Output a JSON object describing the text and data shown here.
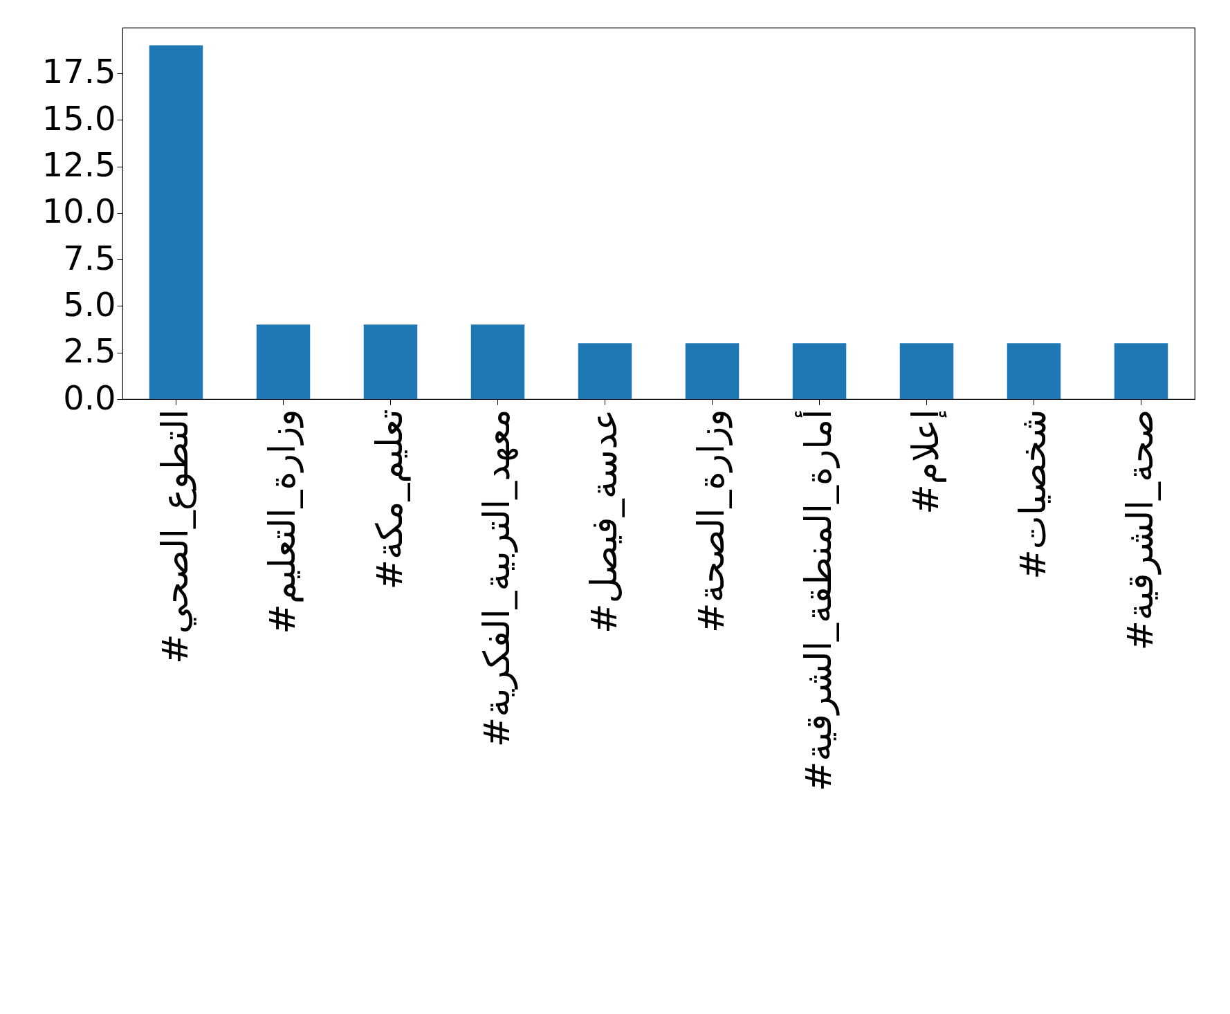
{
  "chart_data": {
    "type": "bar",
    "categories": [
      "#التطوع_الصحي",
      "#وزارة_التعليم",
      "#تعليم_مكة",
      "#معهد_التربية_الفكرية",
      "#عدسة_فيصل",
      "#وزارة_الصحة",
      "#أمارة_المنطقة_الشرقية",
      "#إعلام",
      "#شخصيات",
      "#صحة_الشرقية"
    ],
    "values": [
      19,
      4,
      4,
      4,
      3,
      3,
      3,
      3,
      3,
      3
    ],
    "color": "#1f77b4",
    "ylim": [
      0,
      19.95
    ],
    "yticks": [
      {
        "value": 0,
        "label": "0.0"
      },
      {
        "value": 2.5,
        "label": "2.5"
      },
      {
        "value": 5,
        "label": "5.0"
      },
      {
        "value": 7.5,
        "label": "7.5"
      },
      {
        "value": 10,
        "label": "10.0"
      },
      {
        "value": 12.5,
        "label": "12.5"
      },
      {
        "value": 15,
        "label": "15.0"
      },
      {
        "value": 17.5,
        "label": "17.5"
      }
    ],
    "grid": false
  }
}
